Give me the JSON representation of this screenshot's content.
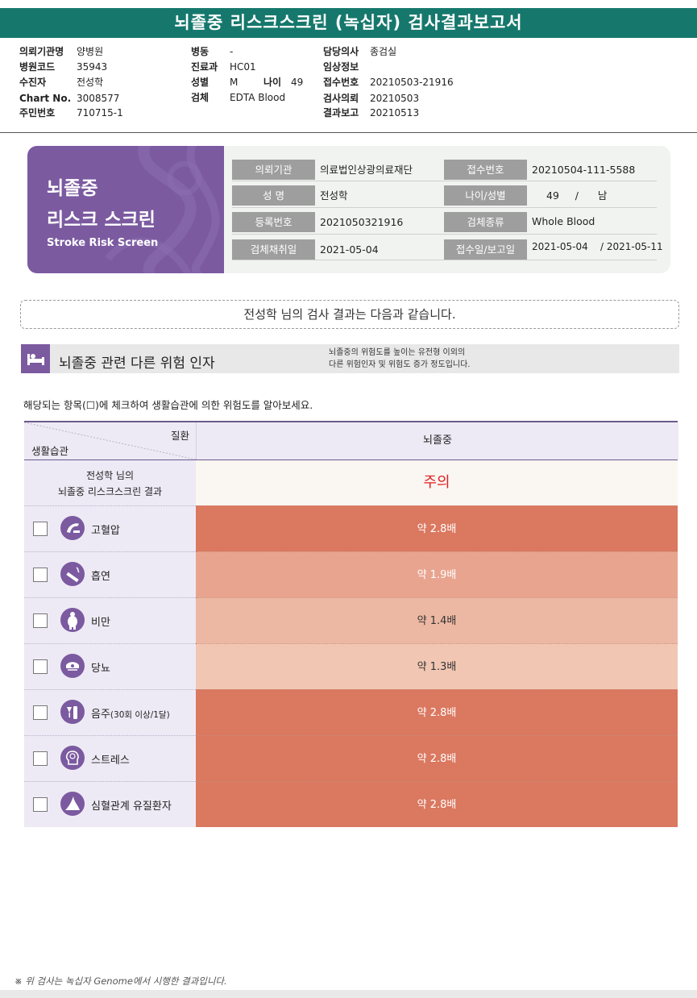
{
  "report_title": "뇌졸중 리스크스크린 (녹십자) 검사결과보고서",
  "header_info": {
    "col1": [
      {
        "label": "의뢰기관명",
        "value": "양병원"
      },
      {
        "label": "병원코드",
        "value": "35943"
      },
      {
        "label": "수진자",
        "value": "전성학"
      },
      {
        "label": "Chart No.",
        "value": "3008577"
      },
      {
        "label": "주민번호",
        "value": "710715-1"
      }
    ],
    "col2": [
      {
        "label": "병동",
        "value": "-"
      },
      {
        "label": "진료과",
        "value": "HC01"
      },
      {
        "label": "성별",
        "value": "M"
      },
      {
        "label": "검체",
        "value": "EDTA Blood"
      }
    ],
    "age": {
      "label": "나이",
      "value": "49"
    },
    "col3": [
      {
        "label": "담당의사",
        "value": "종검실"
      },
      {
        "label": "임상정보",
        "value": ""
      },
      {
        "label": "접수번호",
        "value": "20210503-21916"
      },
      {
        "label": "검사의뢰",
        "value": "20210503"
      },
      {
        "label": "결과보고",
        "value": "20210513"
      }
    ]
  },
  "banner": {
    "title_line1": "뇌졸중",
    "title_line2": "리스크 스크린",
    "subtitle": "Stroke Risk Screen",
    "left_fields": [
      {
        "label": "의뢰기관",
        "value": "의료법인상광의료재단"
      },
      {
        "label": "성 명",
        "value": "전성학"
      },
      {
        "label": "등록번호",
        "value": "2021050321916"
      },
      {
        "label": "검체채취일",
        "value": "2021-05-04"
      }
    ],
    "right_fields": [
      {
        "label": "접수번호",
        "value": "20210504-111-5588"
      },
      {
        "label": "나이/성별",
        "value": "49     /      남"
      },
      {
        "label": "검체종류",
        "value": "Whole Blood"
      },
      {
        "label": "접수일/보고일",
        "value": "2021-05-04    / 2021-05-11"
      }
    ]
  },
  "greeting": "전성학 님의 검사 결과는 다음과 같습니다.",
  "section": {
    "title": "뇌졸중 관련 다른 위험 인자",
    "note_line1": "뇌졸중의 위험도를 높이는 유전형 이외의",
    "note_line2": "다른 위험인자 및 위험도 증가 정도입니다."
  },
  "instruction": "해당되는 항목(☐)에 체크하여 생활습관에 의한 위험도를 알아보세요.",
  "table": {
    "header_disease": "질환",
    "header_lifestyle": "생활습관",
    "header_column": "뇌졸중",
    "result_label_line1": "전성학 님의",
    "result_label_line2": "뇌졸중 리스크스크린 결과",
    "result_value": "주의",
    "result_color": "#e02020",
    "rows": [
      {
        "icon": "blood-pressure-icon",
        "label": "고혈압",
        "label_small": "",
        "value": "약 2.8배",
        "color": "#db7860"
      },
      {
        "icon": "smoking-icon",
        "label": "흡연",
        "label_small": "",
        "value": "약 1.9배",
        "color": "#e8a48f"
      },
      {
        "icon": "obesity-icon",
        "label": "비만",
        "label_small": "",
        "value": "약 1.4배",
        "color": "#ecb8a3"
      },
      {
        "icon": "diabetes-icon",
        "label": "당뇨",
        "label_small": "",
        "value": "약 1.3배",
        "color": "#f1c7b3"
      },
      {
        "icon": "alcohol-icon",
        "label": "음주",
        "label_small": "(30회 이상/1달)",
        "value": "약 2.8배",
        "color": "#db7860"
      },
      {
        "icon": "stress-icon",
        "label": "스트레스",
        "label_small": "",
        "value": "약 2.8배",
        "color": "#db7860"
      },
      {
        "icon": "heart-disease-icon",
        "label": "심혈관계 유질환자",
        "label_small": "",
        "value": "약 2.8배",
        "color": "#db7860"
      }
    ]
  },
  "footer": "※ 위 검사는 녹십자 Genome에서 시행한 결과입니다.",
  "colors": {
    "teal": "#16786d",
    "purple": "#7b5aa0",
    "lavender": "#eeeaf5"
  }
}
